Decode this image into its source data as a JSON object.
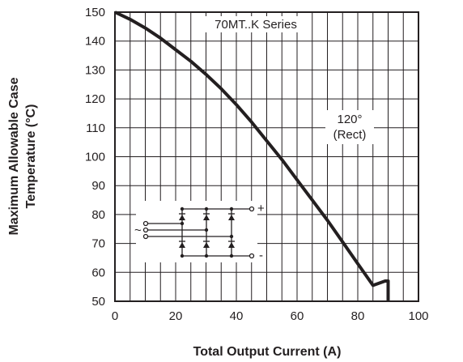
{
  "chart_data": {
    "type": "line",
    "title": "",
    "xlabel": "Total Output Current (A)",
    "ylabel_lines": [
      "Maximum Allowable Case",
      "Temperature (°C)"
    ],
    "xlim": [
      0,
      100
    ],
    "ylim": [
      50,
      150
    ],
    "x_ticks": [
      "0",
      "20",
      "40",
      "60",
      "80",
      "100"
    ],
    "y_ticks": [
      "50",
      "60",
      "70",
      "80",
      "90",
      "100",
      "110",
      "120",
      "130",
      "140",
      "150"
    ],
    "grid": true,
    "series": [
      {
        "x": [
          0,
          5,
          10,
          15,
          20,
          25,
          30,
          35,
          40,
          45,
          50,
          55,
          60,
          65,
          70,
          75,
          80,
          85,
          89,
          90,
          90
        ],
        "y": [
          150,
          147.5,
          144.5,
          141,
          137,
          133,
          128.5,
          123.5,
          118,
          112,
          105.5,
          99,
          92,
          85,
          78,
          70.5,
          63,
          55.5,
          57,
          57,
          50
        ]
      }
    ],
    "annotations": {
      "series_label": "70MT..K Series",
      "curve_label_line1": "120°",
      "curve_label_line2": "(Rect)",
      "circuit_ac_symbol": "~",
      "circuit_plus": "+",
      "circuit_minus": "-"
    }
  }
}
